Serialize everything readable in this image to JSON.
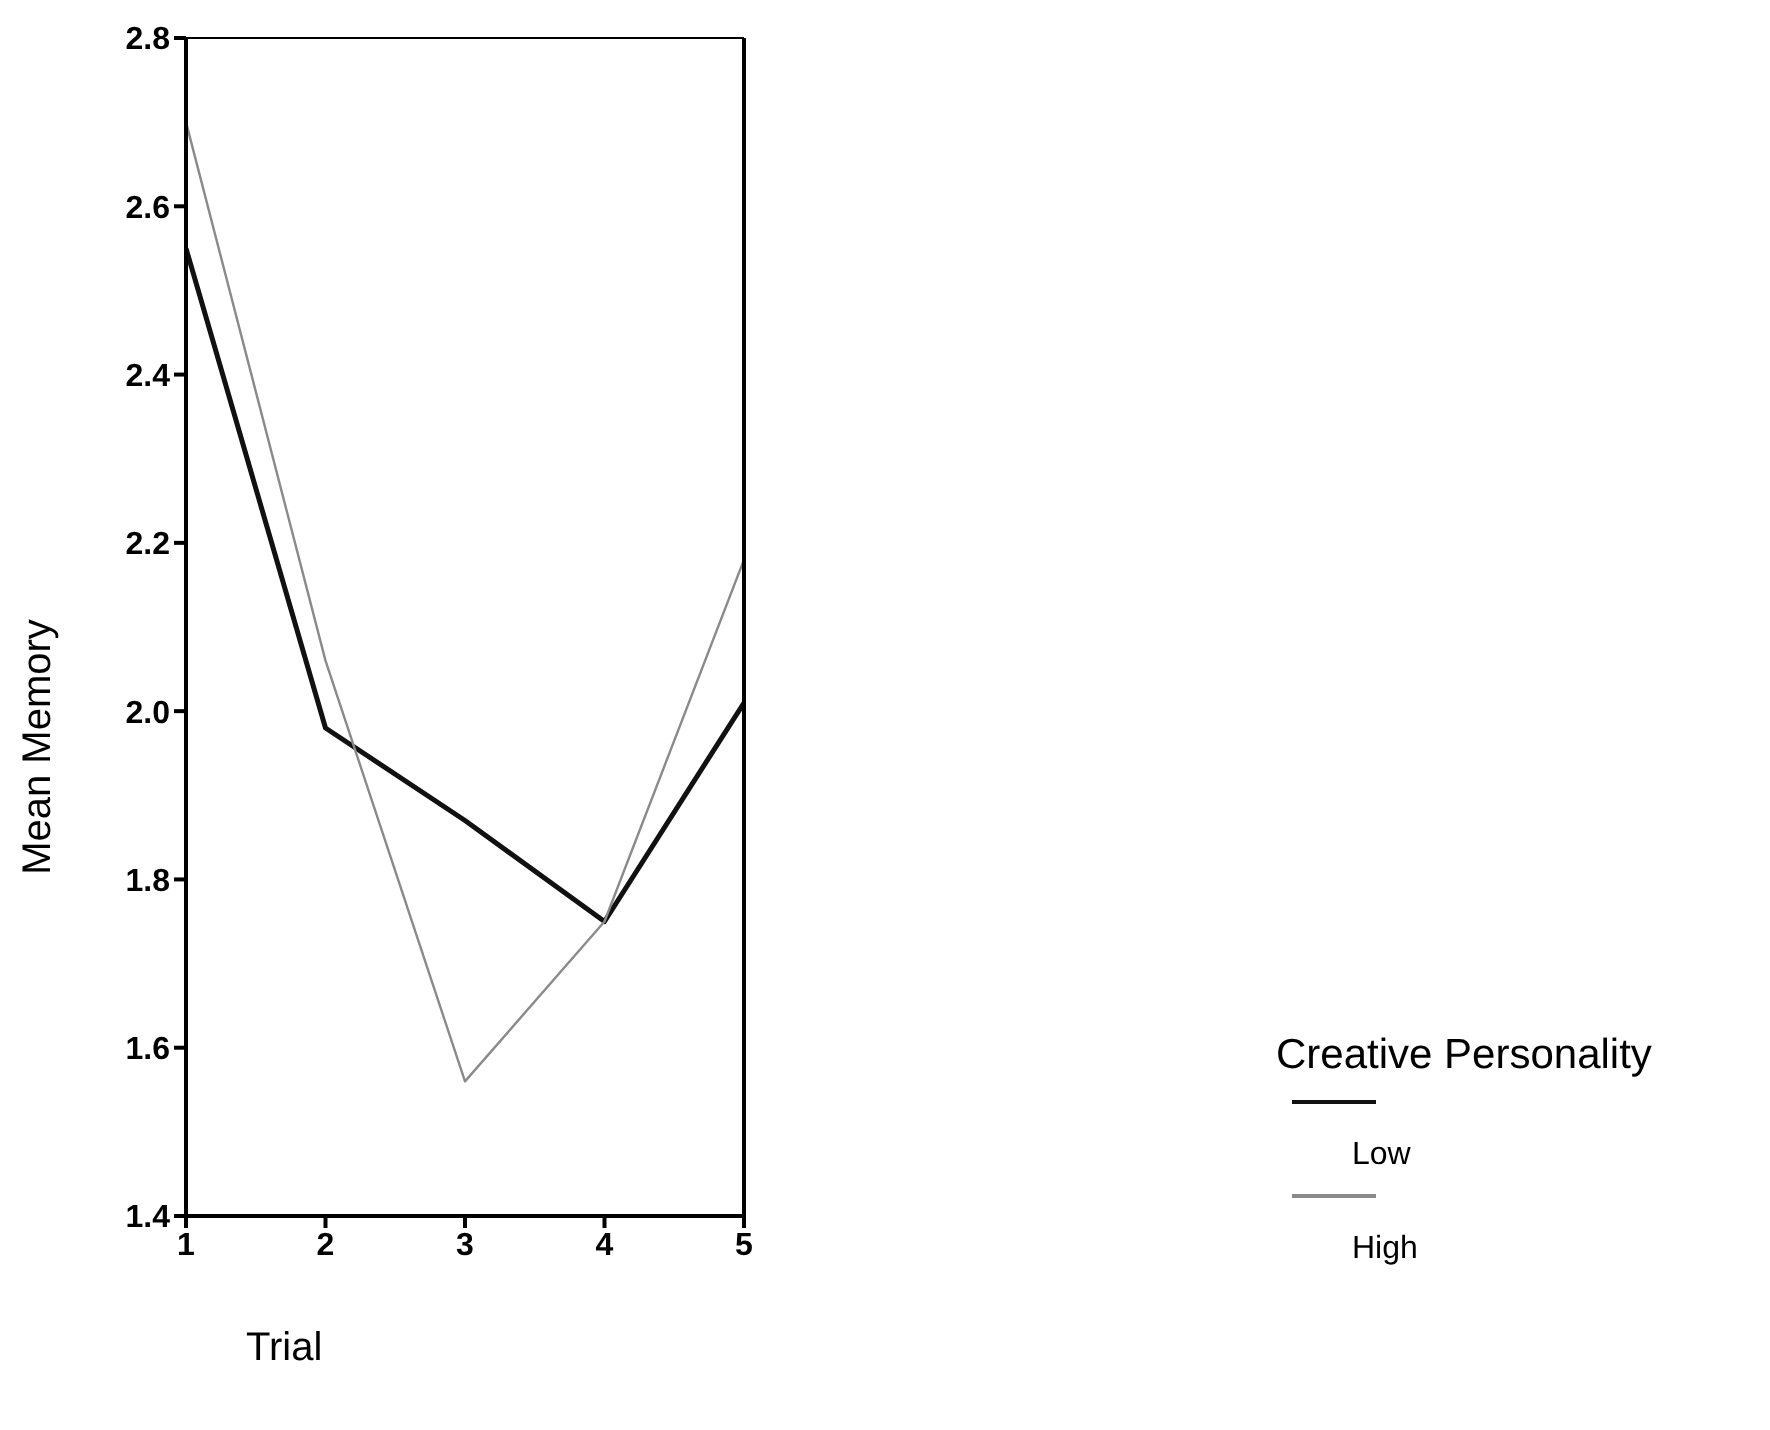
{
  "chart_data": {
    "type": "line",
    "xlabel": "Trial",
    "ylabel": "Mean Memory",
    "legend_title": "Creative Personality",
    "x": [
      1,
      2,
      3,
      4,
      5
    ],
    "xlim": [
      1,
      5
    ],
    "xticks": [
      1,
      2,
      3,
      4,
      5
    ],
    "ylim": [
      1.4,
      2.8
    ],
    "yticks": [
      1.4,
      1.6,
      1.8,
      {
        "value": 2,
        "label": "2.0"
      },
      2.2,
      2.4,
      2.6,
      2.8
    ],
    "series": [
      {
        "name": "Low",
        "color": "#111111",
        "values": [
          2.55,
          1.98,
          1.87,
          1.75,
          2.01
        ]
      },
      {
        "name": "High",
        "color": "#8a8a8a",
        "values": [
          2.7,
          2.06,
          1.56,
          1.75,
          2.18
        ]
      }
    ],
    "legend": "right",
    "grid": false,
    "marker": "none",
    "line_style": "solid"
  }
}
